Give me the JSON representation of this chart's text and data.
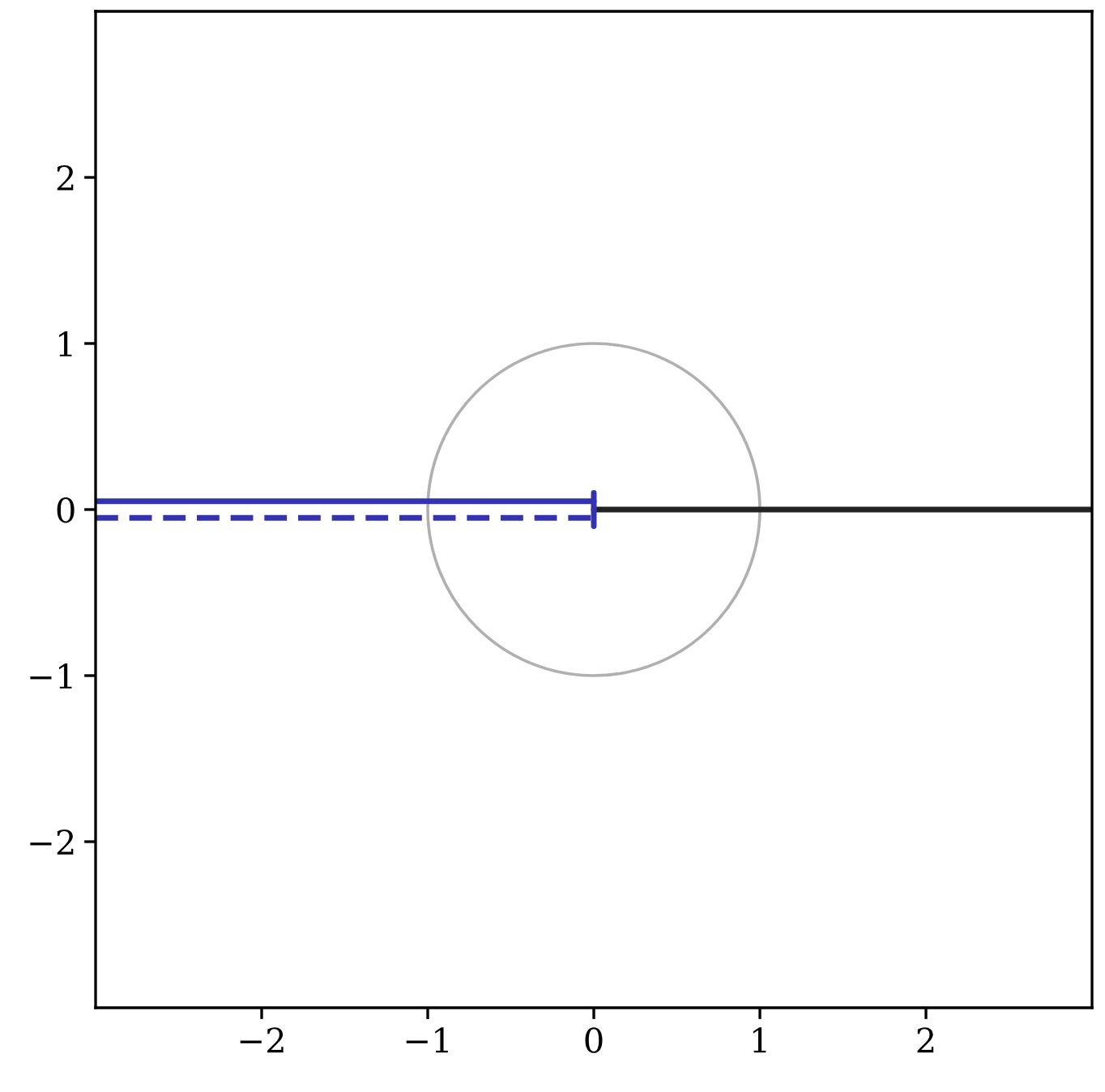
{
  "chart_data": {
    "type": "line",
    "xlim": [
      -3,
      3
    ],
    "ylim": [
      -3,
      3
    ],
    "xticks": [
      -2,
      -1,
      0,
      1,
      2
    ],
    "yticks": [
      -2,
      -1,
      0,
      1,
      2
    ],
    "grid": false,
    "legend": false,
    "marker": "none",
    "series": [
      {
        "color": "#222222",
        "line_style": "solid",
        "x": [
          0,
          3
        ],
        "values": [
          0,
          0
        ]
      },
      {
        "color": "#3333b2",
        "line_style": "solid",
        "x": [
          -3,
          0
        ],
        "values": [
          0.05,
          0.05
        ]
      },
      {
        "color": "#3333b2",
        "line_style": "dashed",
        "x": [
          -3,
          0
        ],
        "values": [
          -0.05,
          -0.05
        ]
      },
      {
        "color": "#3333b2",
        "line_style": "solid",
        "x": [
          0,
          0
        ],
        "values": [
          0.1,
          -0.1
        ]
      }
    ]
  }
}
